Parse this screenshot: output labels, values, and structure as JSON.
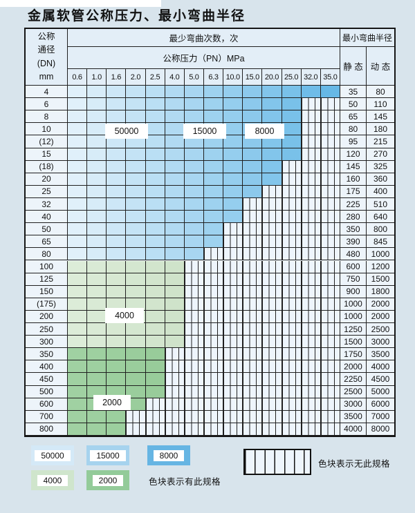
{
  "title": "金属软管公称压力、最小弯曲半径",
  "table": {
    "header": {
      "dn_lines": [
        "公称",
        "通径",
        "(DN)",
        "mm"
      ],
      "cycles": "最少弯曲次数，次",
      "pressure": "公称压力（PN）MPa",
      "radius": "最小弯曲半径",
      "static": "静 态",
      "dynamic": "动 态",
      "pressures": [
        "0.6",
        "1.0",
        "1.6",
        "2.0",
        "2.5",
        "4.0",
        "5.0",
        "6.3",
        "10.0",
        "15.0",
        "20.0",
        "25.0",
        "32.0",
        "35.0"
      ]
    },
    "rows": [
      {
        "dn": "4",
        "spec_cols": 14,
        "zone": "blue",
        "static": "35",
        "dynamic": "80"
      },
      {
        "dn": "6",
        "spec_cols": 12,
        "zone": "blue",
        "static": "50",
        "dynamic": "110"
      },
      {
        "dn": "8",
        "spec_cols": 12,
        "zone": "blue",
        "static": "65",
        "dynamic": "145"
      },
      {
        "dn": "10",
        "spec_cols": 12,
        "zone": "blue",
        "static": "80",
        "dynamic": "180"
      },
      {
        "dn": "(12)",
        "spec_cols": 12,
        "zone": "blue",
        "static": "95",
        "dynamic": "215"
      },
      {
        "dn": "15",
        "spec_cols": 12,
        "zone": "blue",
        "static": "120",
        "dynamic": "270"
      },
      {
        "dn": "(18)",
        "spec_cols": 11,
        "zone": "blue",
        "static": "145",
        "dynamic": "325"
      },
      {
        "dn": "20",
        "spec_cols": 11,
        "zone": "blue",
        "static": "160",
        "dynamic": "360"
      },
      {
        "dn": "25",
        "spec_cols": 10,
        "zone": "blue",
        "static": "175",
        "dynamic": "400"
      },
      {
        "dn": "32",
        "spec_cols": 9,
        "zone": "blue",
        "static": "225",
        "dynamic": "510"
      },
      {
        "dn": "40",
        "spec_cols": 9,
        "zone": "blue",
        "static": "280",
        "dynamic": "640"
      },
      {
        "dn": "50",
        "spec_cols": 8,
        "zone": "blue",
        "static": "350",
        "dynamic": "800"
      },
      {
        "dn": "65",
        "spec_cols": 8,
        "zone": "blue",
        "static": "390",
        "dynamic": "845"
      },
      {
        "dn": "80",
        "spec_cols": 7,
        "zone": "blue",
        "static": "480",
        "dynamic": "1000"
      },
      {
        "dn": "100",
        "spec_cols": 6,
        "zone": "g4",
        "static": "600",
        "dynamic": "1200"
      },
      {
        "dn": "125",
        "spec_cols": 6,
        "zone": "g4",
        "static": "750",
        "dynamic": "1500"
      },
      {
        "dn": "150",
        "spec_cols": 6,
        "zone": "g4",
        "static": "900",
        "dynamic": "1800"
      },
      {
        "dn": "(175)",
        "spec_cols": 6,
        "zone": "g4",
        "static": "1000",
        "dynamic": "2000"
      },
      {
        "dn": "200",
        "spec_cols": 6,
        "zone": "g4",
        "static": "1000",
        "dynamic": "2000"
      },
      {
        "dn": "250",
        "spec_cols": 6,
        "zone": "g4",
        "static": "1250",
        "dynamic": "2500"
      },
      {
        "dn": "300",
        "spec_cols": 6,
        "zone": "g4",
        "static": "1500",
        "dynamic": "3000"
      },
      {
        "dn": "350",
        "spec_cols": 5,
        "zone": "g2",
        "static": "1750",
        "dynamic": "3500"
      },
      {
        "dn": "400",
        "spec_cols": 5,
        "zone": "g2",
        "static": "2000",
        "dynamic": "4000"
      },
      {
        "dn": "450",
        "spec_cols": 5,
        "zone": "g2",
        "static": "2250",
        "dynamic": "4500"
      },
      {
        "dn": "500",
        "spec_cols": 5,
        "zone": "g2",
        "static": "2500",
        "dynamic": "5000"
      },
      {
        "dn": "600",
        "spec_cols": 4,
        "zone": "g2",
        "static": "3000",
        "dynamic": "6000"
      },
      {
        "dn": "700",
        "spec_cols": 3,
        "zone": "g2",
        "static": "3500",
        "dynamic": "7000"
      },
      {
        "dn": "800",
        "spec_cols": 3,
        "zone": "g2",
        "static": "4000",
        "dynamic": "8000"
      }
    ]
  },
  "overlay_labels": [
    {
      "text": "50000"
    },
    {
      "text": "15000"
    },
    {
      "text": "8000"
    },
    {
      "text": "4000"
    },
    {
      "text": "2000"
    }
  ],
  "legend": {
    "items": [
      {
        "label": "50000",
        "color": "#d4e9f7"
      },
      {
        "label": "15000",
        "color": "#a6d3ee"
      },
      {
        "label": "8000",
        "color": "#66b5e3"
      },
      {
        "label": "4000",
        "color": "#cfe5cc"
      },
      {
        "label": "2000",
        "color": "#93cb99"
      }
    ],
    "has_spec_text": "色块表示有此规格",
    "no_spec_text": "色块表示无此规格"
  },
  "colors": {
    "page_bg": "#d8e4ec",
    "grid_line": "#1f1f1f",
    "cell_bg": "#edf4fa",
    "header_bg": "#e3eef7",
    "hatch_bg": "#eef5fc",
    "blue_start": "#e0f0fa",
    "blue_end": "#66b8e6",
    "green4_start": "#dcecd8",
    "green4_end": "#cfe3ca",
    "green2_start": "#a0d1a2",
    "green2_end": "#96cb98"
  }
}
